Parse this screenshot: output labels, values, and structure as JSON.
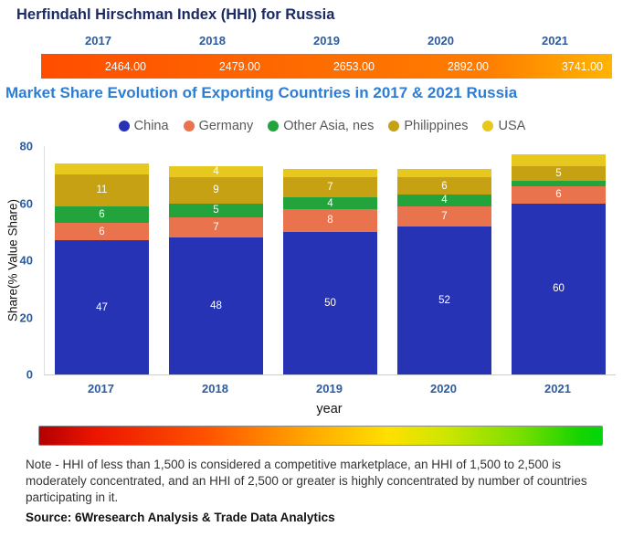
{
  "hhi": {
    "title": "Herfindahl Hirschman Index (HHI) for Russia",
    "years": [
      "2017",
      "2018",
      "2019",
      "2020",
      "2021"
    ],
    "values": [
      "2464.00",
      "2479.00",
      "2653.00",
      "2892.00",
      "3741.00"
    ],
    "bar_color_left": "#ff4d00",
    "bar_color_right": "#ffb400"
  },
  "chart": {
    "title": "Market Share Evolution of Exporting Countries in 2017 & 2021 Russia",
    "ylabel": "Share(% Value Share)",
    "xlabel": "year"
  },
  "chart_data": {
    "type": "bar",
    "stacked": true,
    "title": "Market Share Evolution of Exporting Countries in 2017 & 2021 Russia",
    "xlabel": "year",
    "ylabel": "Share(% Value Share)",
    "categories": [
      "2017",
      "2018",
      "2019",
      "2020",
      "2021"
    ],
    "ylim": [
      0,
      80
    ],
    "yticks": [
      0,
      20,
      40,
      60,
      80
    ],
    "legend_position": "top",
    "grid": false,
    "series": [
      {
        "name": "China",
        "color": "#2733b5",
        "values": [
          47,
          48,
          50,
          52,
          60
        ],
        "labels": [
          "47",
          "48",
          "50",
          "52",
          "60"
        ]
      },
      {
        "name": "Germany",
        "color": "#e8734c",
        "values": [
          6,
          7,
          8,
          7,
          6
        ],
        "labels": [
          "6",
          "7",
          "8",
          "7",
          "6"
        ]
      },
      {
        "name": "Other Asia, nes",
        "color": "#22a33c",
        "values": [
          6,
          5,
          4,
          4,
          2
        ],
        "labels": [
          "6",
          "5",
          "4",
          "4",
          ""
        ]
      },
      {
        "name": "Philippines",
        "color": "#c6a113",
        "values": [
          11,
          9,
          7,
          6,
          5
        ],
        "labels": [
          "11",
          "9",
          "7",
          "6",
          "5"
        ]
      },
      {
        "name": "USA",
        "color": "#e7c81e",
        "values": [
          4,
          4,
          3,
          3,
          4
        ],
        "labels": [
          "",
          "4",
          "",
          "",
          ""
        ]
      }
    ]
  },
  "hhi_scale": {
    "left_color": "#b30000",
    "right_color": "#00d60b"
  },
  "note": "Note - HHI of less than 1,500 is considered a competitive marketplace, an HHI of 1,500 to 2,500 is moderately concentrated, and an HHI of 2,500 or greater is highly concentrated by number of countries participating in it.",
  "source": "Source: 6Wresearch Analysis & Trade Data Analytics"
}
